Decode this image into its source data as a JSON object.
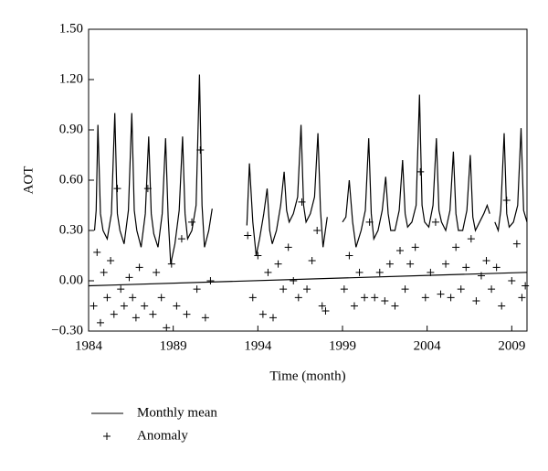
{
  "chart_data": {
    "type": "line",
    "x_label": "Time (month)",
    "y_label": "AOT",
    "xlim": [
      1984,
      2009.9
    ],
    "xticks": [
      1984,
      1989,
      1994,
      1999,
      2004,
      2009
    ],
    "ylim": [
      -0.3,
      1.5
    ],
    "yticks": [
      {
        "value": -0.3,
        "label": "−0.30"
      },
      {
        "value": 0,
        "label": "0.00"
      },
      {
        "value": 0.3,
        "label": "0.30"
      },
      {
        "value": 0.6,
        "label": "0.60"
      },
      {
        "value": 0.9,
        "label": "0.90"
      },
      {
        "value": 1.2,
        "label": "1.20"
      },
      {
        "value": 1.5,
        "label": "1.50"
      }
    ],
    "series": [
      {
        "name": "Monthly mean",
        "color": "#000000",
        "kind": "line",
        "x": [
          1984.35,
          1984.45,
          1984.55,
          1984.7,
          1984.85,
          1985.1,
          1985.35,
          1985.55,
          1985.7,
          1985.85,
          1986.1,
          1986.35,
          1986.55,
          1986.7,
          1986.85,
          1987.1,
          1987.35,
          1987.55,
          1987.7,
          1987.85,
          1988.1,
          1988.35,
          1988.55,
          1988.7,
          1988.85,
          1989.1,
          1989.35,
          1989.55,
          1989.7,
          1989.85,
          1990.1,
          1990.35,
          1990.55,
          1990.7,
          1990.85,
          1991.1,
          1991.3,
          1992,
          1993.35,
          1993.5,
          1993.7,
          1993.9,
          1994.1,
          1994.35,
          1994.55,
          1994.7,
          1994.85,
          1995.1,
          1995.35,
          1995.55,
          1995.7,
          1995.85,
          1996.1,
          1996.35,
          1996.55,
          1996.7,
          1996.85,
          1997.1,
          1997.35,
          1997.55,
          1997.7,
          1997.85,
          1998.1,
          1998.5,
          1999.0,
          1999.2,
          1999.4,
          1999.6,
          1999.8,
          2000.1,
          2000.35,
          2000.55,
          2000.7,
          2000.85,
          2001.1,
          2001.35,
          2001.55,
          2001.7,
          2001.85,
          2002.1,
          2002.35,
          2002.55,
          2002.7,
          2002.85,
          2003.1,
          2003.35,
          2003.55,
          2003.7,
          2003.85,
          2004.1,
          2004.35,
          2004.55,
          2004.7,
          2004.85,
          2005.1,
          2005.35,
          2005.55,
          2005.7,
          2005.85,
          2006.1,
          2006.35,
          2006.55,
          2006.7,
          2006.85,
          2007.1,
          2007.35,
          2007.55,
          2007.7,
          2007.85,
          2008.0,
          2008.2,
          2008.35,
          2008.55,
          2008.7,
          2008.85,
          2009.1,
          2009.35,
          2009.55,
          2009.7,
          2009.9
        ],
        "values": [
          0.3,
          0.42,
          0.93,
          0.4,
          0.3,
          0.25,
          0.4,
          1.0,
          0.4,
          0.3,
          0.22,
          0.42,
          1.0,
          0.42,
          0.3,
          0.2,
          0.4,
          0.86,
          0.4,
          0.28,
          0.2,
          0.4,
          0.85,
          0.38,
          0.1,
          0.22,
          0.42,
          0.86,
          0.4,
          0.25,
          0.3,
          0.45,
          1.23,
          0.45,
          0.2,
          0.3,
          0.43,
          null,
          0.33,
          0.7,
          0.35,
          0.15,
          0.25,
          0.4,
          0.55,
          0.3,
          0.22,
          0.3,
          0.45,
          0.65,
          0.42,
          0.35,
          0.4,
          0.5,
          0.93,
          0.45,
          0.35,
          0.4,
          0.5,
          0.88,
          0.42,
          0.2,
          0.38,
          null,
          0.35,
          0.38,
          0.6,
          0.35,
          0.2,
          0.3,
          0.42,
          0.85,
          0.4,
          0.25,
          0.3,
          0.42,
          0.62,
          0.4,
          0.3,
          0.3,
          0.42,
          0.72,
          0.4,
          0.32,
          0.35,
          0.45,
          1.11,
          0.45,
          0.35,
          0.32,
          0.45,
          0.85,
          0.42,
          0.35,
          0.3,
          0.42,
          0.77,
          0.4,
          0.3,
          0.3,
          0.42,
          0.75,
          0.38,
          0.3,
          0.35,
          0.4,
          0.45,
          0.4,
          null,
          0.35,
          0.3,
          0.42,
          0.88,
          0.4,
          0.32,
          0.35,
          0.45,
          0.91,
          0.42,
          0.35
        ]
      },
      {
        "name": "Anomaly",
        "color": "#000000",
        "kind": "scatter",
        "x": [
          1984.3,
          1984.5,
          1984.7,
          1984.9,
          1985.1,
          1985.3,
          1985.5,
          1985.7,
          1985.9,
          1986.1,
          1986.4,
          1986.6,
          1986.8,
          1987.0,
          1987.3,
          1987.5,
          1987.8,
          1988.0,
          1988.3,
          1988.6,
          1988.9,
          1989.2,
          1989.5,
          1989.8,
          1990.1,
          1990.4,
          1990.6,
          1990.9,
          1991.2,
          1993.4,
          1993.7,
          1994.0,
          1994.3,
          1994.6,
          1994.9,
          1995.2,
          1995.5,
          1995.8,
          1996.1,
          1996.4,
          1996.6,
          1996.9,
          1997.2,
          1997.5,
          1997.8,
          1998.0,
          1999.1,
          1999.4,
          1999.7,
          2000.0,
          2000.3,
          2000.6,
          2000.9,
          2001.2,
          2001.5,
          2001.8,
          2002.1,
          2002.4,
          2002.7,
          2003.0,
          2003.3,
          2003.6,
          2003.9,
          2004.2,
          2004.5,
          2004.8,
          2005.1,
          2005.4,
          2005.7,
          2006.0,
          2006.3,
          2006.6,
          2006.9,
          2007.2,
          2007.5,
          2007.8,
          2008.1,
          2008.4,
          2008.7,
          2009.0,
          2009.3,
          2009.6,
          2009.8
        ],
        "values": [
          -0.15,
          0.17,
          -0.25,
          0.05,
          -0.1,
          0.12,
          -0.2,
          0.55,
          -0.05,
          -0.15,
          0.02,
          -0.1,
          -0.22,
          0.08,
          -0.15,
          0.55,
          -0.2,
          0.05,
          -0.1,
          -0.28,
          0.1,
          -0.15,
          0.25,
          -0.2,
          0.35,
          -0.05,
          0.78,
          -0.22,
          0.0,
          0.27,
          -0.1,
          0.15,
          -0.2,
          0.05,
          -0.22,
          0.1,
          -0.05,
          0.2,
          0.0,
          -0.1,
          0.47,
          -0.05,
          0.12,
          0.3,
          -0.15,
          -0.18,
          -0.05,
          0.15,
          -0.15,
          0.05,
          -0.1,
          0.35,
          -0.1,
          0.05,
          -0.12,
          0.1,
          -0.15,
          0.18,
          -0.05,
          0.1,
          0.2,
          0.65,
          -0.1,
          0.05,
          0.35,
          -0.08,
          0.1,
          -0.1,
          0.2,
          -0.05,
          0.08,
          0.25,
          -0.12,
          0.03,
          0.12,
          -0.05,
          0.08,
          -0.15,
          0.48,
          0.0,
          0.22,
          -0.1,
          -0.03
        ]
      }
    ],
    "trend": {
      "x": [
        1984,
        2009.9
      ],
      "values": [
        -0.03,
        0.05
      ]
    }
  }
}
